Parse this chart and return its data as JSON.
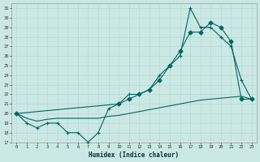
{
  "xlabel": "Humidex (Indice chaleur)",
  "bg_color": "#cce8e4",
  "line_color": "#006666",
  "grid_color": "#b8dbd8",
  "xmin": -0.5,
  "xmax": 23.5,
  "ymin": 17,
  "ymax": 31.5,
  "yticks": [
    17,
    18,
    19,
    20,
    21,
    22,
    23,
    24,
    25,
    26,
    27,
    28,
    29,
    30,
    31
  ],
  "xticks": [
    0,
    1,
    2,
    3,
    4,
    5,
    6,
    7,
    8,
    9,
    10,
    11,
    12,
    13,
    14,
    15,
    16,
    17,
    18,
    19,
    20,
    21,
    22,
    23
  ],
  "series1_x": [
    0,
    1,
    2,
    3,
    4,
    5,
    6,
    7,
    8,
    9,
    10,
    11,
    12,
    13,
    14,
    15,
    16,
    17,
    18,
    19,
    20,
    21,
    22,
    23
  ],
  "series1_y": [
    20,
    19,
    18.5,
    19,
    19,
    18,
    18,
    17,
    18,
    20.5,
    21,
    22,
    22,
    22.5,
    24,
    25,
    26,
    31,
    29,
    29,
    28,
    27,
    23.5,
    21.5
  ],
  "series2_x": [
    0,
    10,
    11,
    12,
    13,
    14,
    15,
    16,
    17,
    18,
    19,
    20,
    21,
    22,
    23
  ],
  "series2_y": [
    20,
    21,
    21.5,
    22,
    22.5,
    23.5,
    25,
    26.5,
    28.5,
    28.5,
    29.5,
    29,
    27.5,
    21.5,
    21.5
  ],
  "series3_x": [
    0,
    1,
    2,
    3,
    4,
    5,
    6,
    7,
    8,
    9,
    10,
    11,
    12,
    13,
    14,
    15,
    16,
    17,
    18,
    19,
    20,
    21,
    22,
    23
  ],
  "series3_y": [
    20,
    19.5,
    19.2,
    19.4,
    19.5,
    19.5,
    19.5,
    19.5,
    19.5,
    19.7,
    19.8,
    20.0,
    20.2,
    20.4,
    20.6,
    20.8,
    21.0,
    21.2,
    21.4,
    21.5,
    21.6,
    21.7,
    21.8,
    21.5
  ]
}
